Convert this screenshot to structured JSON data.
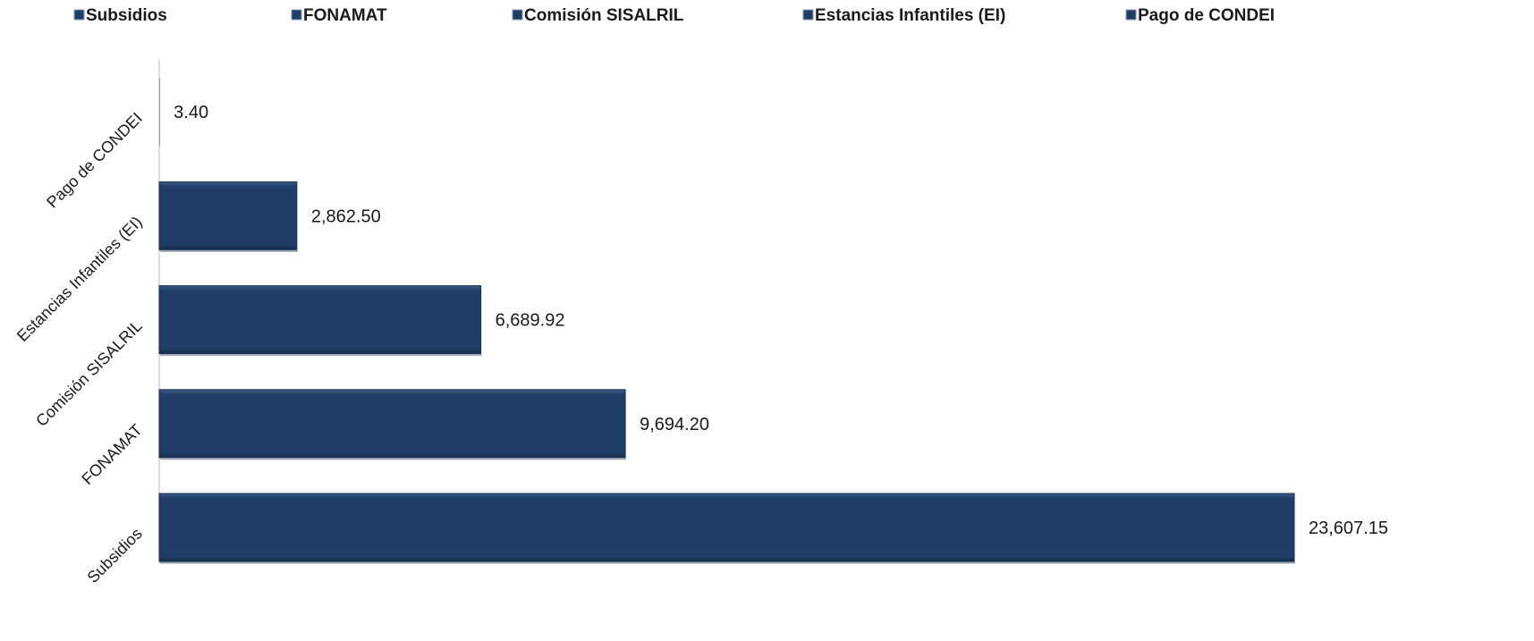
{
  "chart_data": {
    "type": "bar",
    "orientation": "horizontal",
    "categories": [
      "Subsidios",
      "FONAMAT",
      "Comisión SISALRIL",
      "Estancias Infantiles (EI)",
      "Pago de CONDEI"
    ],
    "values": [
      23607.15,
      9694.2,
      6689.92,
      2862.5,
      3.4
    ],
    "value_labels": [
      "23,607.15",
      "9,694.20",
      "6,689.92",
      "2,862.50",
      "3.40"
    ],
    "legend": [
      "Subsidios",
      "FONAMAT",
      "Comisión SISALRIL",
      "Estancias Infantiles (EI)",
      "Pago de CONDEI"
    ],
    "legend_position": "top",
    "xlim": [
      0,
      23607.15
    ],
    "grid": false,
    "bar_color": "#1f3d66",
    "bar_edge_color": "#16304f",
    "axis_color": "#bfbfbf"
  }
}
